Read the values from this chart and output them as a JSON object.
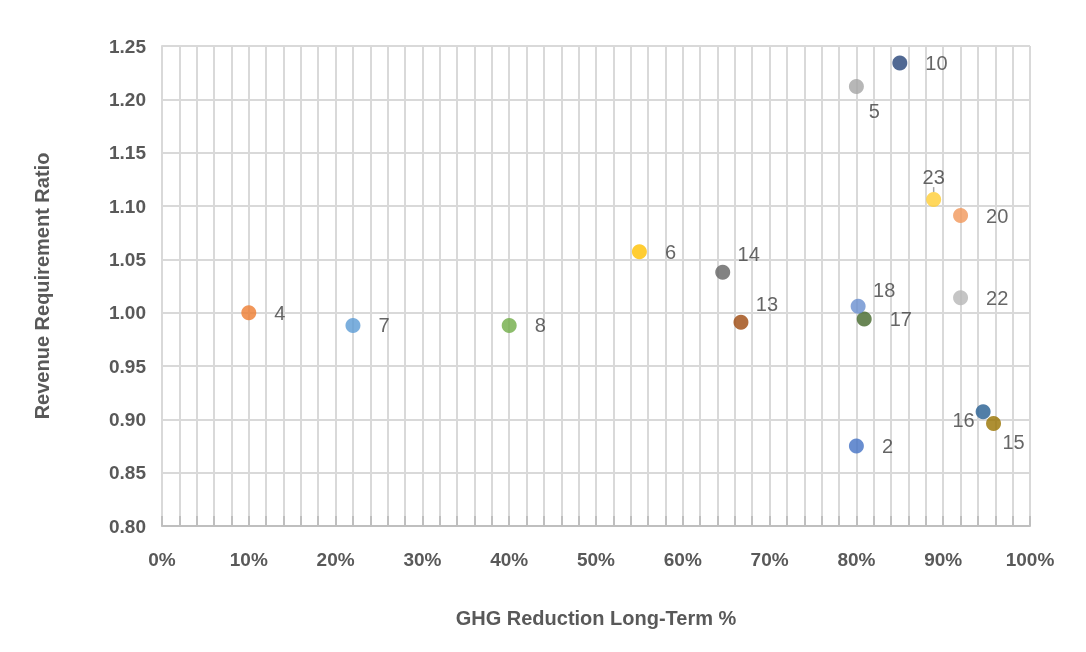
{
  "chart_data": {
    "type": "scatter",
    "xlabel": "GHG Reduction Long-Term %",
    "ylabel": "Revenue Requirement Ratio",
    "marker": "circle",
    "legend": false,
    "grid": true,
    "xlim": [
      0,
      100
    ],
    "xticks": [
      {
        "value": 0,
        "label": "0%"
      },
      {
        "value": 2,
        "label": null
      },
      {
        "value": 4,
        "label": null
      },
      {
        "value": 6,
        "label": null
      },
      {
        "value": 8,
        "label": null
      },
      {
        "value": 10,
        "label": "10%"
      },
      {
        "value": 12,
        "label": null
      },
      {
        "value": 14,
        "label": null
      },
      {
        "value": 16,
        "label": null
      },
      {
        "value": 18,
        "label": null
      },
      {
        "value": 20,
        "label": "20%"
      },
      {
        "value": 22,
        "label": null
      },
      {
        "value": 24,
        "label": null
      },
      {
        "value": 26,
        "label": null
      },
      {
        "value": 28,
        "label": null
      },
      {
        "value": 30,
        "label": "30%"
      },
      {
        "value": 32,
        "label": null
      },
      {
        "value": 34,
        "label": null
      },
      {
        "value": 36,
        "label": null
      },
      {
        "value": 38,
        "label": null
      },
      {
        "value": 40,
        "label": "40%"
      },
      {
        "value": 42,
        "label": null
      },
      {
        "value": 44,
        "label": null
      },
      {
        "value": 46,
        "label": null
      },
      {
        "value": 48,
        "label": null
      },
      {
        "value": 50,
        "label": "50%"
      },
      {
        "value": 52,
        "label": null
      },
      {
        "value": 54,
        "label": null
      },
      {
        "value": 56,
        "label": null
      },
      {
        "value": 58,
        "label": null
      },
      {
        "value": 60,
        "label": "60%"
      },
      {
        "value": 62,
        "label": null
      },
      {
        "value": 64,
        "label": null
      },
      {
        "value": 66,
        "label": null
      },
      {
        "value": 68,
        "label": null
      },
      {
        "value": 70,
        "label": "70%"
      },
      {
        "value": 72,
        "label": null
      },
      {
        "value": 74,
        "label": null
      },
      {
        "value": 76,
        "label": null
      },
      {
        "value": 78,
        "label": null
      },
      {
        "value": 80,
        "label": "80%"
      },
      {
        "value": 82,
        "label": null
      },
      {
        "value": 84,
        "label": null
      },
      {
        "value": 86,
        "label": null
      },
      {
        "value": 88,
        "label": null
      },
      {
        "value": 90,
        "label": "90%"
      },
      {
        "value": 92,
        "label": null
      },
      {
        "value": 94,
        "label": null
      },
      {
        "value": 96,
        "label": null
      },
      {
        "value": 98,
        "label": null
      },
      {
        "value": 100,
        "label": "100%"
      }
    ],
    "ylim": [
      0.8,
      1.25
    ],
    "yticks": [
      {
        "value": 0.8,
        "label": "0.80"
      },
      {
        "value": 0.85,
        "label": "0.85"
      },
      {
        "value": 0.9,
        "label": "0.90"
      },
      {
        "value": 0.95,
        "label": "0.95"
      },
      {
        "value": 1.0,
        "label": "1.00"
      },
      {
        "value": 1.05,
        "label": "1.05"
      },
      {
        "value": 1.1,
        "label": "1.10"
      },
      {
        "value": 1.15,
        "label": "1.15"
      },
      {
        "value": 1.2,
        "label": "1.20"
      },
      {
        "value": 1.25,
        "label": "1.25"
      }
    ],
    "series": [
      {
        "name": "2",
        "color": "#4472c4",
        "x": [
          80
        ],
        "values": [
          0.875
        ]
      },
      {
        "name": "4",
        "color": "#ed7d31",
        "x": [
          10
        ],
        "values": [
          1.0
        ]
      },
      {
        "name": "5",
        "color": "#a5a5a5",
        "x": [
          80
        ],
        "values": [
          1.212
        ]
      },
      {
        "name": "6",
        "color": "#ffc000",
        "x": [
          55
        ],
        "values": [
          1.057
        ]
      },
      {
        "name": "7",
        "color": "#5b9bd5",
        "x": [
          22
        ],
        "values": [
          0.988
        ]
      },
      {
        "name": "8",
        "color": "#70ad47",
        "x": [
          40
        ],
        "values": [
          0.988
        ]
      },
      {
        "name": "10",
        "color": "#264478",
        "x": [
          85
        ],
        "values": [
          1.234
        ]
      },
      {
        "name": "13",
        "color": "#9e480e",
        "x": [
          66.7
        ],
        "values": [
          0.991
        ]
      },
      {
        "name": "14",
        "color": "#636363",
        "x": [
          64.6
        ],
        "values": [
          1.038
        ]
      },
      {
        "name": "15",
        "color": "#997300",
        "x": [
          95.8
        ],
        "values": [
          0.896
        ]
      },
      {
        "name": "16",
        "color": "#255e91",
        "x": [
          94.6
        ],
        "values": [
          0.907
        ]
      },
      {
        "name": "17",
        "color": "#43682b",
        "x": [
          80.9
        ],
        "values": [
          0.994
        ]
      },
      {
        "name": "18",
        "color": "#698ed0",
        "x": [
          80.2
        ],
        "values": [
          1.006
        ]
      },
      {
        "name": "20",
        "color": "#f1975a",
        "x": [
          92
        ],
        "values": [
          1.091
        ]
      },
      {
        "name": "22",
        "color": "#b7b7b7",
        "x": [
          92
        ],
        "values": [
          1.014
        ]
      },
      {
        "name": "23",
        "color": "#ffcd33",
        "x": [
          88.9
        ],
        "values": [
          1.106
        ]
      }
    ]
  }
}
